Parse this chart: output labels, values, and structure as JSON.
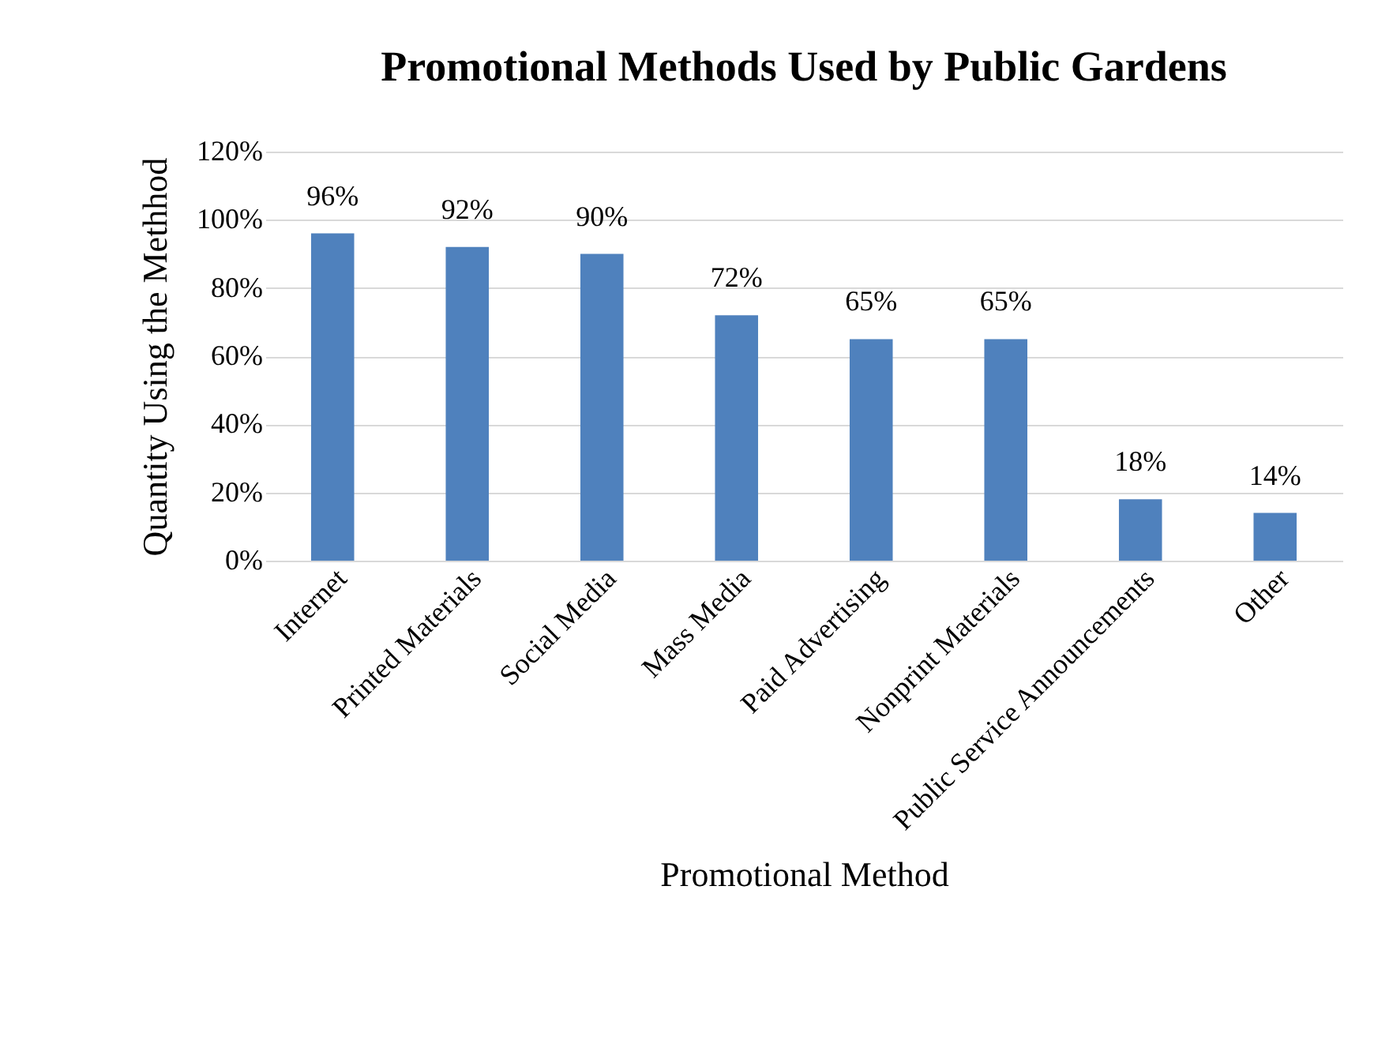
{
  "chart_data": {
    "type": "bar",
    "title": "Promotional Methods Used by Public Gardens",
    "xlabel": "Promotional Method",
    "ylabel": "Quantity Using the Methhod",
    "categories": [
      "Internet",
      "Printed Materials",
      "Social Media",
      "Mass Media",
      "Paid Advertising",
      "Nonprint Materials",
      "Public Service Announcements",
      "Other"
    ],
    "values": [
      96,
      92,
      90,
      72,
      65,
      65,
      18,
      14
    ],
    "value_labels": [
      "96%",
      "92%",
      "90%",
      "72%",
      "65%",
      "65%",
      "18%",
      "14%"
    ],
    "color": "#4f81bd",
    "ylim": [
      0,
      120
    ],
    "yticks": [
      {
        "value": 0,
        "label": "0%"
      },
      {
        "value": 20,
        "label": "20%"
      },
      {
        "value": 40,
        "label": "40%"
      },
      {
        "value": 60,
        "label": "60%"
      },
      {
        "value": 80,
        "label": "80%"
      },
      {
        "value": 100,
        "label": "100%"
      },
      {
        "value": 120,
        "label": "120%"
      }
    ],
    "grid": "y"
  }
}
